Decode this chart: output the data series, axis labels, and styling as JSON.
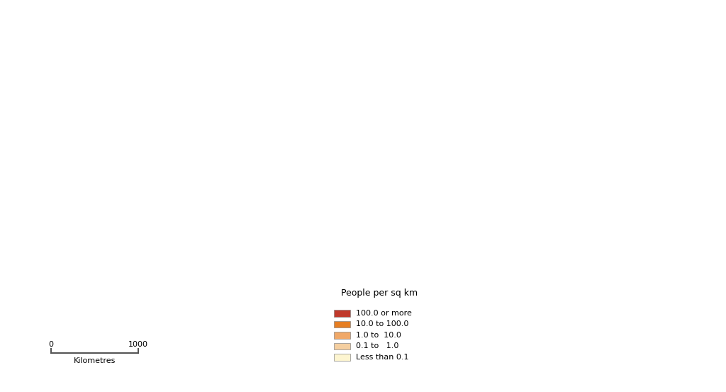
{
  "title": "",
  "legend_title": "People per sq km",
  "legend_entries": [
    {
      "label": "100.0 or more",
      "color": "#c0392b"
    },
    {
      "label": "10.0 to 100.0",
      "color": "#e67e22"
    },
    {
      "label": "1.0 to  10.0",
      "color": "#f0a868"
    },
    {
      "label": "0.1 to   1.0",
      "color": "#f5cfa0"
    },
    {
      "label": "Less than 0.1",
      "color": "#fdf5d0"
    }
  ],
  "scalebar_label": "Kilometres",
  "scalebar_0": "0",
  "scalebar_1000": "1000",
  "background_color": "#ffffff",
  "border_color": "#1a1a1a",
  "state_border_color": "#1a1a1a",
  "figsize": [
    10.24,
    5.53
  ],
  "dpi": 100
}
